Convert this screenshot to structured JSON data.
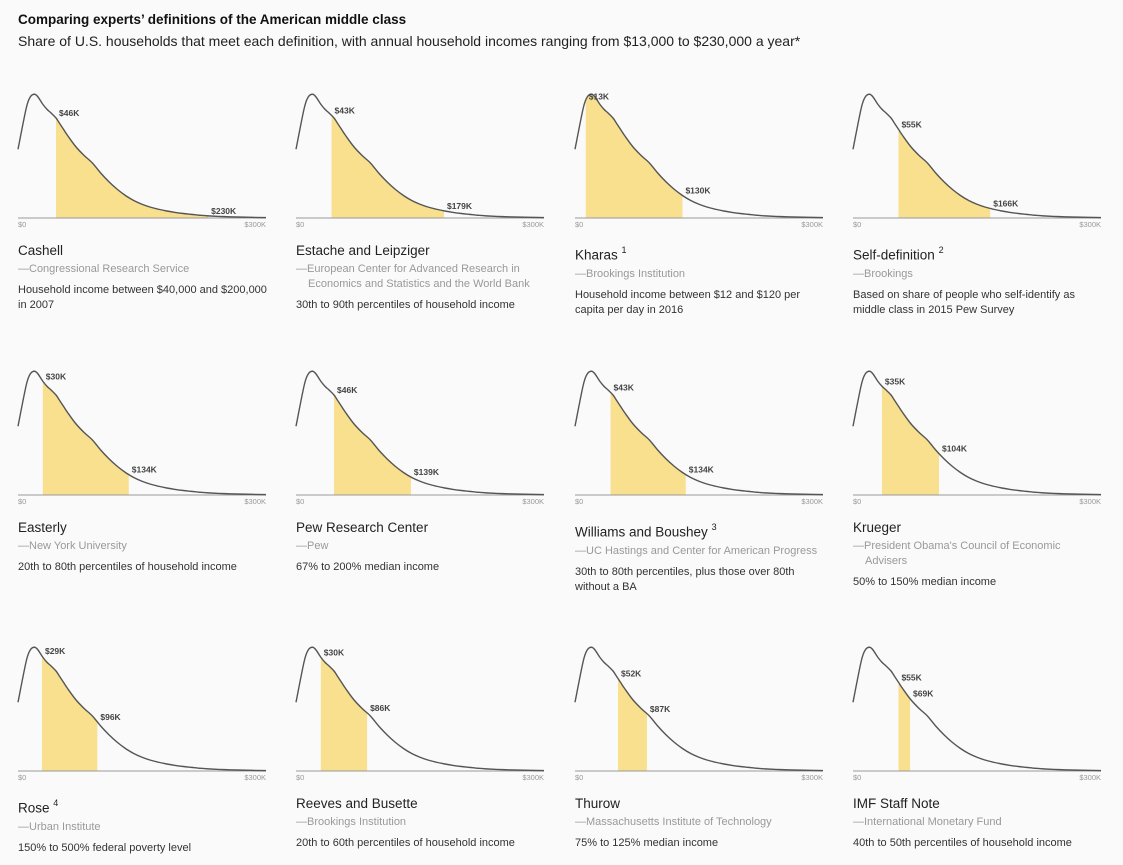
{
  "title": "Comparing experts’ definitions of the American middle class",
  "subtitle": "Share of U.S. households that meet each definition, with annual household incomes ranging from $13,000 to $230,000 a year*",
  "colors": {
    "band": "#f8e08e",
    "curve": "#555555",
    "axis": "#999999"
  },
  "chart_data": {
    "type": "area",
    "x_unit": "K",
    "xlim": [
      0,
      300
    ],
    "x_tick_labels": [
      "$0",
      "$300K"
    ],
    "distribution": {
      "x": [
        0,
        10,
        15,
        20,
        24,
        30,
        35,
        40,
        46,
        50,
        55,
        60,
        70,
        80,
        90,
        100,
        110,
        120,
        130,
        140,
        150,
        160,
        170,
        180,
        190,
        200,
        210,
        220,
        230,
        250,
        270,
        300
      ],
      "y": [
        0.55,
        0.88,
        0.97,
        0.99,
        0.97,
        0.91,
        0.87,
        0.84,
        0.8,
        0.76,
        0.71,
        0.66,
        0.57,
        0.5,
        0.44,
        0.36,
        0.29,
        0.23,
        0.18,
        0.14,
        0.11,
        0.087,
        0.07,
        0.056,
        0.045,
        0.036,
        0.029,
        0.022,
        0.017,
        0.011,
        0.007,
        0.003
      ]
    },
    "panels": [
      {
        "name": "Cashell",
        "sup": "",
        "source": "—Congressional Research Service",
        "description": "Household income between $40,000 and $200,000 in 2007",
        "low": 46,
        "high": 230,
        "low_label": "$46K",
        "high_label": "$230K"
      },
      {
        "name": "Estache and Leipziger",
        "sup": "",
        "source": "—European Center for Advanced Research in Economics and Statistics and the World Bank",
        "description": "30th to 90th percentiles of household income",
        "low": 43,
        "high": 179,
        "low_label": "$43K",
        "high_label": "$179K"
      },
      {
        "name": "Kharas",
        "sup": "1",
        "source": "—Brookings Institution",
        "description": "Household income between $12 and $120 per capita per day in 2016",
        "low": 13,
        "high": 130,
        "low_label": "$13K",
        "high_label": "$130K"
      },
      {
        "name": "Self-definition",
        "sup": "2",
        "source": "—Brookings",
        "description": "Based on share of people who self-identify as middle class in 2015 Pew Survey",
        "low": 55,
        "high": 166,
        "low_label": "$55K",
        "high_label": "$166K"
      },
      {
        "name": "Easterly",
        "sup": "",
        "source": "—New York University",
        "description": "20th to 80th percentiles of household income",
        "low": 30,
        "high": 134,
        "low_label": "$30K",
        "high_label": "$134K"
      },
      {
        "name": "Pew Research Center",
        "sup": "",
        "source": "—Pew",
        "description": "67% to 200% median income",
        "low": 46,
        "high": 139,
        "low_label": "$46K",
        "high_label": "$139K"
      },
      {
        "name": "Williams and Boushey",
        "sup": "3",
        "source": "—UC Hastings and Center for American Progress",
        "description": "30th to 80th percentiles, plus those over 80th without a BA",
        "low": 43,
        "high": 134,
        "low_label": "$43K",
        "high_label": "$134K"
      },
      {
        "name": "Krueger",
        "sup": "",
        "source": "—President Obama's Council of Economic Advisers",
        "description": "50% to 150% median income",
        "low": 35,
        "high": 104,
        "low_label": "$35K",
        "high_label": "$104K"
      },
      {
        "name": "Rose",
        "sup": "4",
        "source": "—Urban Institute",
        "description": "150% to 500% federal poverty level",
        "low": 29,
        "high": 96,
        "low_label": "$29K",
        "high_label": "$96K"
      },
      {
        "name": "Reeves and Busette",
        "sup": "",
        "source": "—Brookings Institution",
        "description": "20th to 60th percentiles of household income",
        "low": 30,
        "high": 86,
        "low_label": "$30K",
        "high_label": "$86K"
      },
      {
        "name": "Thurow",
        "sup": "",
        "source": "—Massachusetts Institute of Technology",
        "description": "75% to 125% median income",
        "low": 52,
        "high": 87,
        "low_label": "$52K",
        "high_label": "$87K"
      },
      {
        "name": "IMF Staff Note",
        "sup": "",
        "source": "—International Monetary Fund",
        "description": "40th to 50th percentiles of household income",
        "low": 55,
        "high": 69,
        "low_label": "$55K",
        "high_label": "$69K"
      }
    ]
  }
}
